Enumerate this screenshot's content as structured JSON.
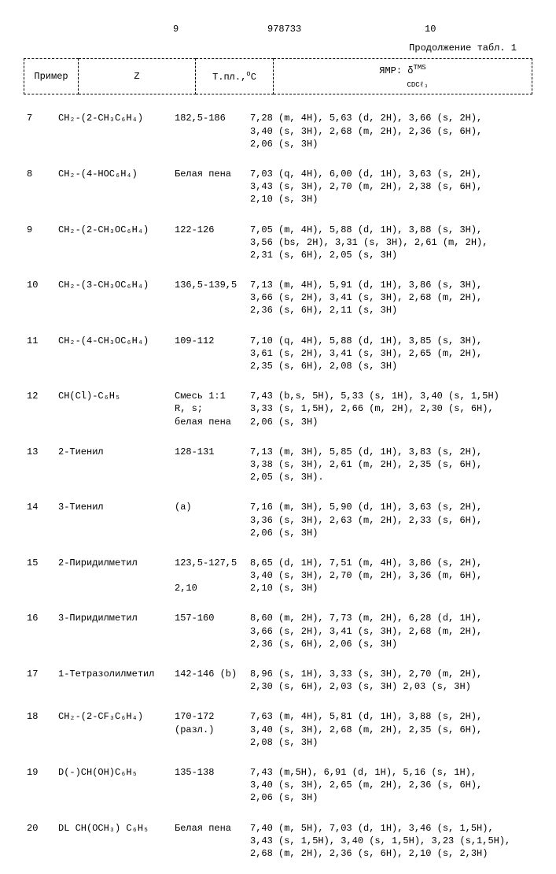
{
  "page": {
    "left_num": "9",
    "center_num": "978733",
    "right_num": "10",
    "continuation": "Продолжение табл. 1"
  },
  "header": {
    "col1": "Пример",
    "col2": "Z",
    "col3_pre": "Т.пл.,",
    "col3_sup": "o",
    "col3_post": "C",
    "col4_pre": "ЯМР: δ",
    "col4_sup": "TMS",
    "col4_sub": "CDCℓ₃"
  },
  "rows": [
    {
      "n": "7",
      "z": "CH₂-(2-CH₃C₆H₄)",
      "mp": "182,5-186",
      "nmr": "7,28 (m, 4H), 5,63 (d, 2H), 3,66 (s, 2H),\n3,40 (s, 3H), 2,68 (m, 2H), 2,36 (s, 6H),\n2,06 (s, 3H)"
    },
    {
      "n": "8",
      "z": "CH₂-(4-HOC₆H₄)",
      "mp": "Белая пена",
      "nmr": "7,03 (q, 4H), 6,00 (d, 1H), 3,63 (s, 2H),\n3,43 (s, 3H), 2,70 (m, 2H), 2,38 (s, 6H),\n2,10 (s, 3H)"
    },
    {
      "n": "9",
      "z": "CH₂-(2-CH₃OC₆H₄)",
      "mp": "122-126",
      "nmr": "7,05 (m, 4H), 5,88 (d, 1H), 3,88 (s, 3H),\n3,56 (bs, 2H), 3,31 (s, 3H), 2,61 (m, 2H),\n2,31 (s, 6H), 2,05 (s, 3H)"
    },
    {
      "n": "10",
      "z": "CH₂-(3-CH₃OC₆H₄)",
      "mp": "136,5-139,5",
      "nmr": "7,13 (m, 4H), 5,91 (d, 1H), 3,86 (s, 3H),\n3,66 (s, 2H), 3,41 (s, 3H), 2,68 (m, 2H),\n2,36 (s, 6H), 2,11 (s, 3H)"
    },
    {
      "n": "11",
      "z": "CH₂-(4-CH₃OC₆H₄)",
      "mp": "109-112",
      "nmr": "7,10 (q, 4H), 5,88 (d, 1H), 3,85 (s, 3H),\n3,61 (s, 2H), 3,41 (s, 3H), 2,65 (m, 2H),\n2,35 (s, 6H), 2,08 (s, 3H)"
    },
    {
      "n": "12",
      "z": "CH(Cl)-C₆H₅",
      "mp": "Смесь 1:1\nR, s;\nбелая пена",
      "nmr": "7,43 (b,s, 5H), 5,33 (s, 1H), 3,40 (s, 1,5H)\n3,33 (s, 1,5H), 2,66 (m, 2H), 2,30 (s, 6H),\n2,06 (s, 3H)"
    },
    {
      "n": "13",
      "z": "2-Тиенил",
      "mp": "128-131",
      "nmr": "7,13 (m, 3H), 5,85 (d, 1H), 3,83 (s, 2H),\n3,38 (s, 3H), 2,61 (m, 2H), 2,35 (s, 6H),\n2,05 (s, 3H)."
    },
    {
      "n": "14",
      "z": "3-Тиенил",
      "mp": "(a)",
      "nmr": "7,16 (m, 3H), 5,90 (d, 1H), 3,63 (s, 2H),\n3,36 (s, 3H), 2,63 (m, 2H), 2,33 (s, 6H),\n2,06 (s, 3H)"
    },
    {
      "n": "15",
      "z": "2-Пиридилметил",
      "mp": "123,5-127,5\n\n2,10",
      "nmr": "8,65 (d, 1H), 7,51 (m, 4H), 3,86 (s, 2H),\n3,40 (s, 3H), 2,70 (m, 2H), 3,36 (m, 6H),\n2,10 (s, 3H)"
    },
    {
      "n": "16",
      "z": "3-Пиридилметил",
      "mp": "157-160",
      "nmr": "8,60 (m, 2H), 7,73 (m, 2H), 6,28 (d, 1H),\n3,66 (s, 2H), 3,41 (s, 3H), 2,68 (m, 2H),\n2,36 (s, 6H), 2,06 (s, 3H)"
    },
    {
      "n": "17",
      "z": "1-Тетразолилметил",
      "mp": "142-146 (b)",
      "nmr": "8,96 (s, 1H), 3,33 (s, 3H), 2,70 (m, 2H),\n2,30 (s, 6H), 2,03 (s, 3H) 2,03 (s, 3H)"
    },
    {
      "n": "18",
      "z": "CH₂-(2-CF₃C₆H₄)",
      "mp": "170-172\n(разл.)",
      "nmr": "7,63 (m, 4H), 5,81 (d, 1H), 3,88 (s, 2H),\n3,40 (s, 3H), 2,68 (m, 2H), 2,35 (s, 6H),\n2,08 (s, 3H)"
    },
    {
      "n": "19",
      "z": "D(-)CH(OH)C₆H₅",
      "mp": "135-138",
      "nmr": "7,43 (m,5H), 6,91 (d, 1H), 5,16 (s, 1H),\n3,40 (s, 3H), 2,65 (m, 2H), 2,36 (s, 6H),\n2,06 (s, 3H)"
    },
    {
      "n": "20",
      "z": "DL CH(OCH₃) C₆H₅",
      "mp": "Белая пена",
      "nmr": "7,40 (m, 5H), 7,03 (d, 1H), 3,46 (s, 1,5H),\n3,43 (s, 1,5H), 3,40 (s, 1,5H), 3,23 (s,1,5H),\n2,68 (m, 2H), 2,36 (s, 6H), 2,10 (s, 2,3H)"
    }
  ]
}
